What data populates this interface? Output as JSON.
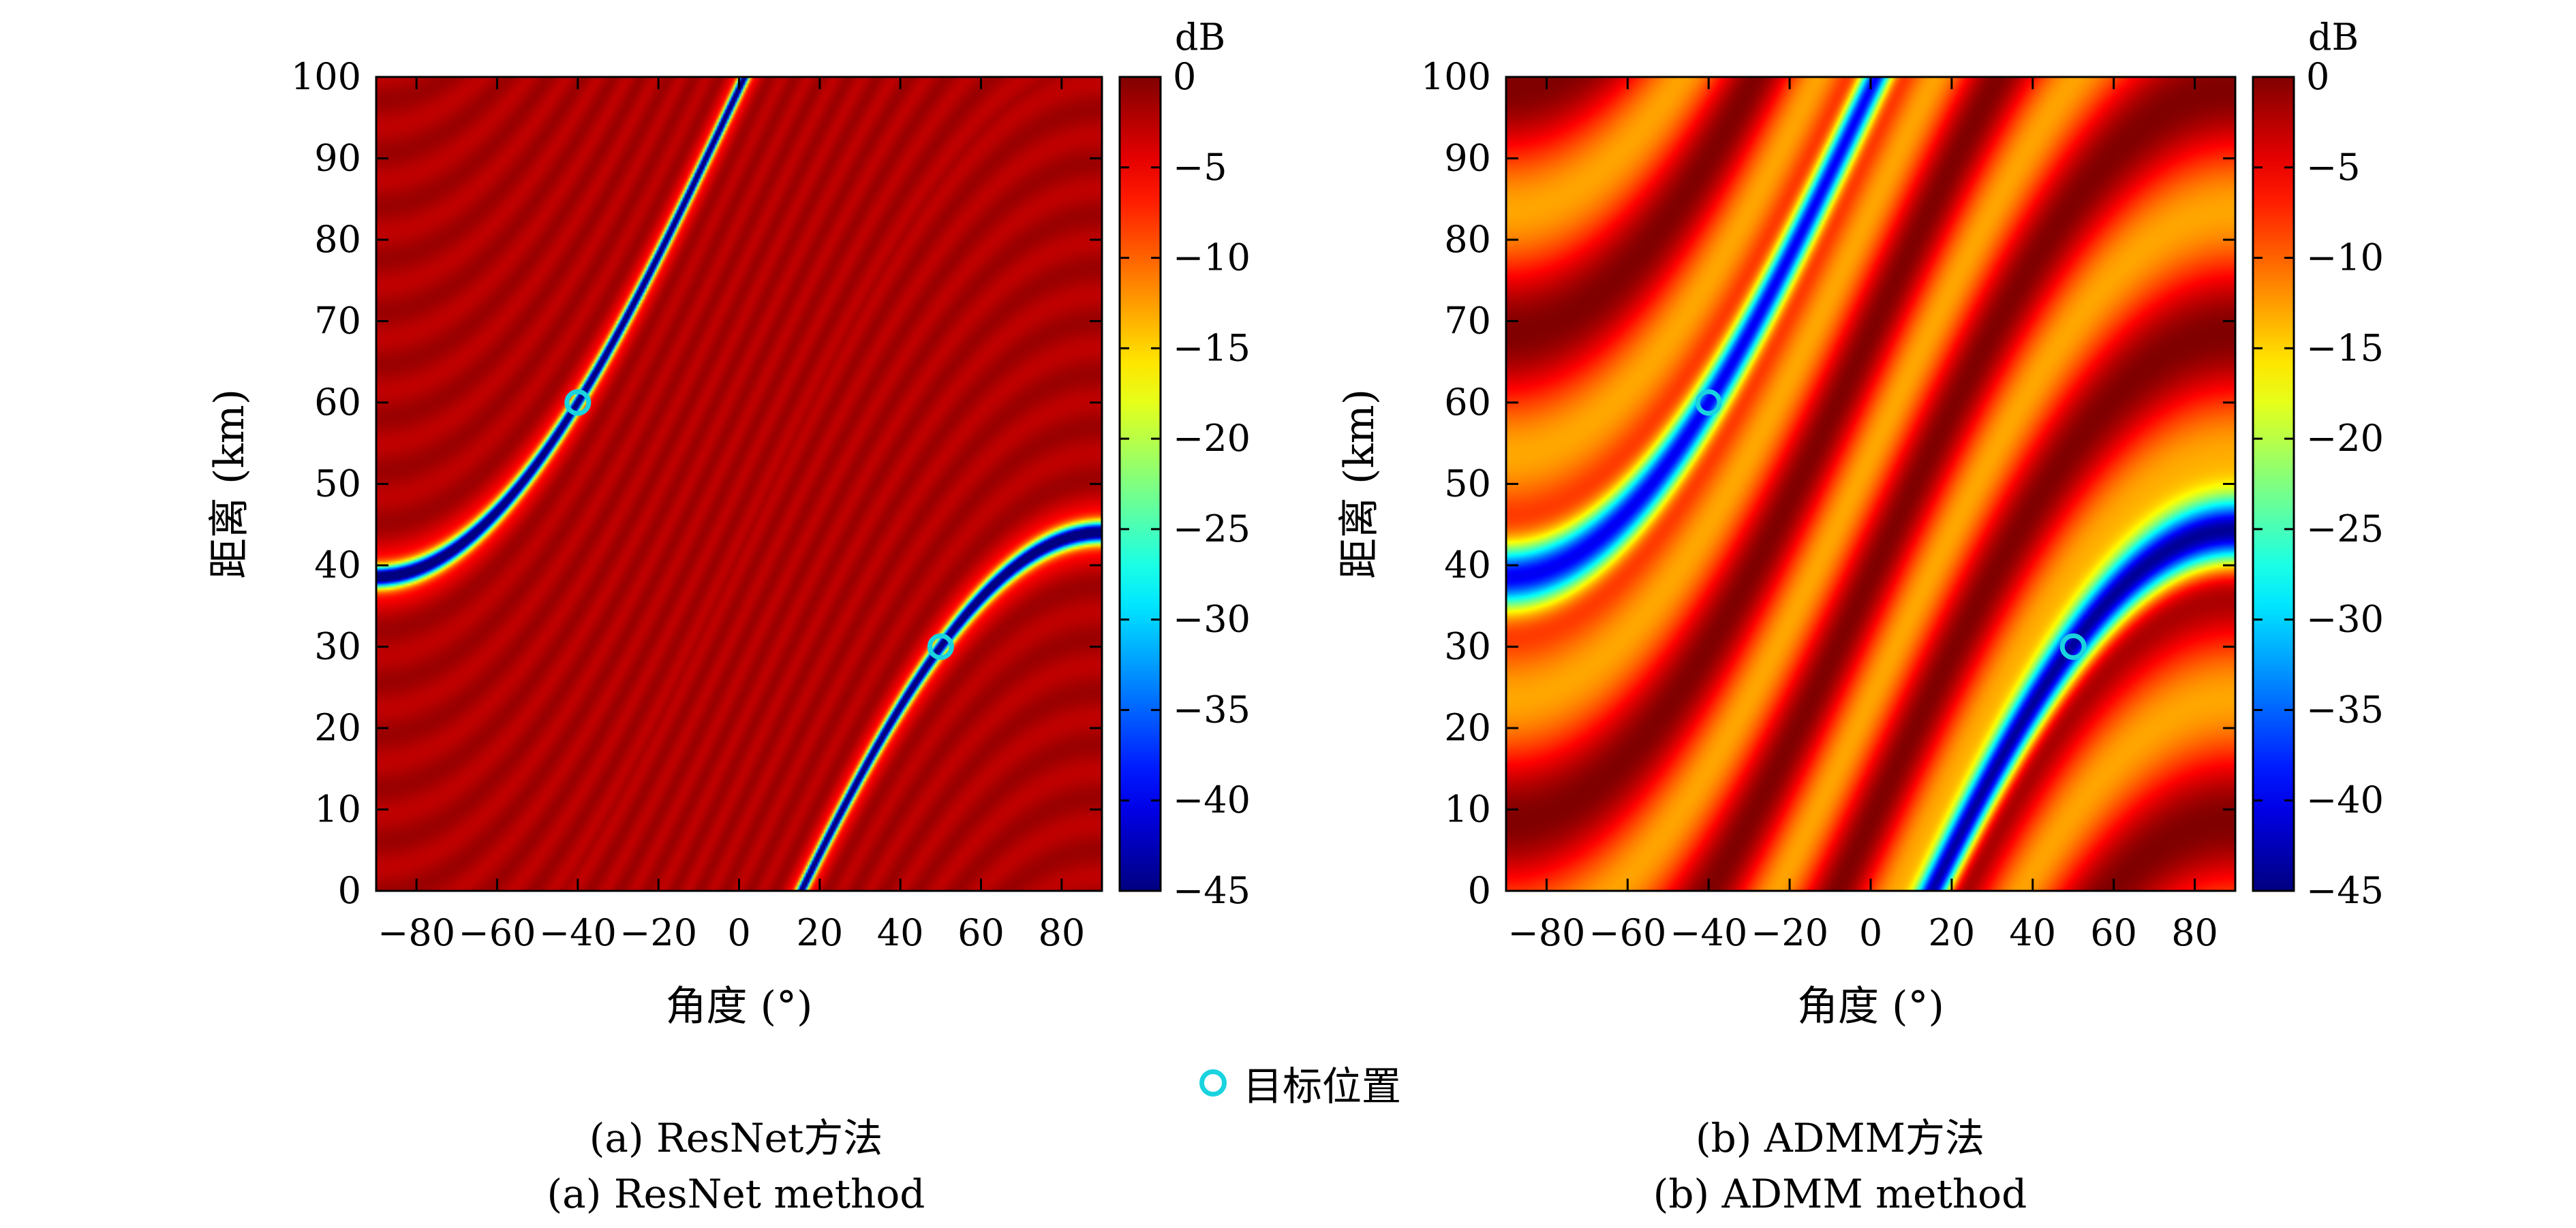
{
  "chart_data": [
    {
      "type": "heatmap",
      "id": "resnet",
      "caption_zh": "(a) ResNet方法",
      "caption_en": "(a) ResNet method",
      "xlabel": "角度 (°)",
      "ylabel": "距离 (km)",
      "xlim": [
        -90,
        90
      ],
      "ylim": [
        0,
        100
      ],
      "xticks": [
        -80,
        -60,
        -40,
        -20,
        0,
        20,
        40,
        60,
        80
      ],
      "yticks": [
        0,
        10,
        20,
        30,
        40,
        50,
        60,
        70,
        80,
        90,
        100
      ],
      "colorbar": {
        "unit": "dB",
        "range": [
          -45,
          0
        ],
        "ticks": [
          0,
          -5,
          -10,
          -15,
          -20,
          -25,
          -30,
          -35,
          -40,
          -45
        ]
      },
      "targets": [
        {
          "angle": -40,
          "range": 60
        },
        {
          "angle": 50,
          "range": 30
        }
      ],
      "floor_db": -2,
      "null_width": 0.9,
      "background": "dark red with faint curved ripples; sharp null curves through targets"
    },
    {
      "type": "heatmap",
      "id": "admm",
      "caption_zh": "(b) ADMM方法",
      "caption_en": "(b) ADMM method",
      "xlabel": "角度 (°)",
      "ylabel": "距离 (km)",
      "xlim": [
        -90,
        90
      ],
      "ylim": [
        0,
        100
      ],
      "xticks": [
        -80,
        -60,
        -40,
        -20,
        0,
        20,
        40,
        60,
        80
      ],
      "yticks": [
        0,
        10,
        20,
        30,
        40,
        50,
        60,
        70,
        80,
        90,
        100
      ],
      "colorbar": {
        "unit": "dB",
        "range": [
          -45,
          0
        ],
        "ticks": [
          0,
          -5,
          -10,
          -15,
          -20,
          -25,
          -30,
          -35,
          -40,
          -45
        ]
      },
      "targets": [
        {
          "angle": -40,
          "range": 60
        },
        {
          "angle": 50,
          "range": 30
        }
      ],
      "floor_db": -13,
      "null_width": 3.0,
      "background": "wide alternating red/orange/yellow curved bands; broad null curves through targets"
    }
  ],
  "legend": {
    "label": "目标位置",
    "marker_color": "#19d3df"
  },
  "colors": {
    "marker": "#19d3df"
  }
}
